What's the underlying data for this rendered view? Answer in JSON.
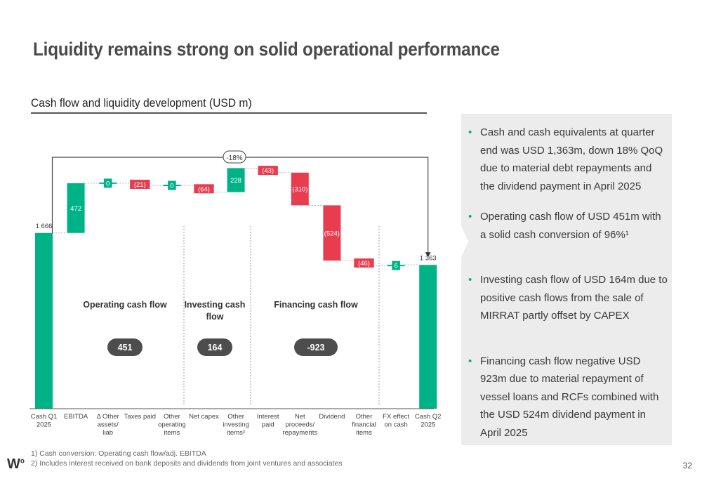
{
  "title": "Liquidity remains strong on solid operational performance",
  "subtitle": "Cash flow and liquidity development (USD m)",
  "colors": {
    "green": "#00b386",
    "red": "#e83c4f",
    "pill": "#4d4d4d",
    "panel": "#ececec"
  },
  "chart_data": {
    "type": "waterfall",
    "categories": [
      "Cash Q1\n2025",
      "EBITDA",
      "Δ Other\nassets/\nliab",
      "Taxes paid",
      "Other\noperating\nitems",
      "Net capex",
      "Other\ninvesting\nitems²",
      "Interest\npaid",
      "Net\nproceeds/\nrepayments",
      "Dividend",
      "Other\nfinancial\nitems",
      "FX effect\non cash",
      "Cash Q2\n2025"
    ],
    "values": [
      1666,
      472,
      0,
      -21,
      0,
      -64,
      228,
      -43,
      -310,
      -524,
      -46,
      6,
      1363
    ],
    "labels": [
      "1 666",
      "472",
      "0",
      "(21)",
      "0",
      "(64)",
      "228",
      "(43)",
      "(310)",
      "(524)",
      "(46)",
      "6",
      "1 363"
    ],
    "bar_kinds": [
      "total",
      "delta",
      "delta",
      "delta",
      "delta",
      "delta",
      "delta",
      "delta",
      "delta",
      "delta",
      "delta",
      "delta",
      "total"
    ],
    "change_label": "-18%",
    "groups": [
      {
        "name": "Operating cash flow",
        "total": "451"
      },
      {
        "name": "Investing cash\nflow",
        "total": "164"
      },
      {
        "name": "Financing cash flow",
        "total": "-923"
      }
    ]
  },
  "bullets": [
    "Cash and cash equivalents at quarter end was USD 1,363m, down 18% QoQ due to material debt repayments and the dividend payment in April 2025",
    "Operating cash flow of USD 451m with a solid cash conversion of 96%¹",
    "Investing cash flow of USD 164m due to positive cash flows from the sale of MIRRAT partly offset by CAPEX",
    "Financing cash flow negative USD 923m due to material repayment of vessel loans and RCFs combined with the USD 524m dividend payment in April 2025"
  ],
  "footnotes": [
    "1)   Cash conversion: Operating cash flow/adj. EBITDA",
    "2)   Includes interest received on bank deposits and dividends from joint ventures and associates"
  ],
  "logo": "W",
  "page_number": "32"
}
